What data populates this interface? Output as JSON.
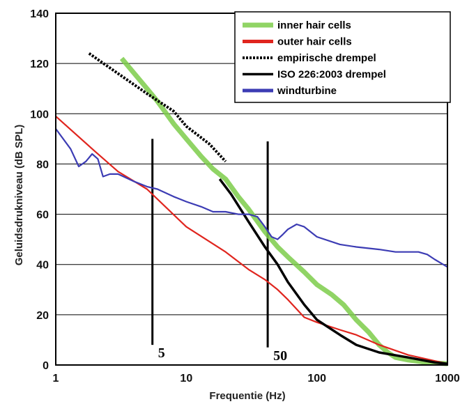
{
  "chart_data": {
    "type": "line",
    "xscale": "log",
    "xlim": [
      1,
      1000
    ],
    "ylim": [
      0,
      140
    ],
    "xlabel": "Frequentie (Hz)",
    "ylabel": "Geluidsdrukniveau  (dB SPL)",
    "grid": "horizontal",
    "legend_position": "top-right",
    "x_ticks": [
      "1",
      "10",
      "100",
      "1000"
    ],
    "y_ticks": [
      "0",
      "20",
      "40",
      "60",
      "80",
      "100",
      "120",
      "140"
    ],
    "series": [
      {
        "name": "inner hair cells",
        "color": "#7ccc4a",
        "style": "thick",
        "points": [
          [
            3.2,
            122
          ],
          [
            4,
            116
          ],
          [
            5,
            110
          ],
          [
            6,
            105
          ],
          [
            8,
            96
          ],
          [
            10,
            90
          ],
          [
            13,
            83
          ],
          [
            16,
            78
          ],
          [
            20,
            74
          ],
          [
            25,
            67
          ],
          [
            30,
            62
          ],
          [
            40,
            53
          ],
          [
            50,
            47
          ],
          [
            60,
            43
          ],
          [
            80,
            37
          ],
          [
            100,
            32
          ],
          [
            130,
            28
          ],
          [
            160,
            24
          ],
          [
            200,
            18
          ],
          [
            250,
            13
          ],
          [
            300,
            8
          ],
          [
            350,
            5
          ],
          [
            400,
            3
          ],
          [
            500,
            2
          ],
          [
            700,
            1
          ],
          [
            1000,
            0.5
          ]
        ]
      },
      {
        "name": "outer hair cells",
        "color": "#e0251e",
        "style": "solid",
        "points": [
          [
            1,
            99
          ],
          [
            2,
            85
          ],
          [
            3,
            77
          ],
          [
            5,
            70
          ],
          [
            10,
            55
          ],
          [
            20,
            45
          ],
          [
            30,
            38
          ],
          [
            40,
            34
          ],
          [
            50,
            30
          ],
          [
            60,
            26
          ],
          [
            80,
            19
          ],
          [
            100,
            17
          ],
          [
            150,
            14
          ],
          [
            200,
            12
          ],
          [
            300,
            8
          ],
          [
            500,
            4
          ],
          [
            1000,
            0.5
          ]
        ]
      },
      {
        "name": "empirische drempel",
        "color": "#000000",
        "style": "dotted",
        "points": [
          [
            1.8,
            124
          ],
          [
            3,
            116
          ],
          [
            5,
            108
          ],
          [
            8,
            101
          ],
          [
            10,
            95
          ],
          [
            15,
            88
          ],
          [
            20,
            81
          ]
        ]
      },
      {
        "name": "ISO 226:2003 drempel",
        "color": "#000000",
        "style": "solid-thick",
        "points": [
          [
            18,
            74
          ],
          [
            22,
            68
          ],
          [
            30,
            57
          ],
          [
            40,
            47
          ],
          [
            50,
            40
          ],
          [
            60,
            33
          ],
          [
            80,
            24
          ],
          [
            100,
            18
          ],
          [
            150,
            12
          ],
          [
            200,
            8
          ],
          [
            300,
            5
          ],
          [
            500,
            3
          ],
          [
            800,
            1
          ],
          [
            1000,
            0.5
          ]
        ]
      },
      {
        "name": "windturbine",
        "color": "#3c3cb4",
        "style": "solid",
        "points": [
          [
            1,
            94
          ],
          [
            1.3,
            86
          ],
          [
            1.5,
            79
          ],
          [
            1.7,
            81
          ],
          [
            1.9,
            84
          ],
          [
            2.1,
            82
          ],
          [
            2.3,
            75
          ],
          [
            2.6,
            76
          ],
          [
            3,
            76
          ],
          [
            4,
            73
          ],
          [
            5,
            71
          ],
          [
            6,
            70
          ],
          [
            8,
            67
          ],
          [
            10,
            65
          ],
          [
            13,
            63
          ],
          [
            16,
            61
          ],
          [
            20,
            61
          ],
          [
            25,
            60
          ],
          [
            30,
            60
          ],
          [
            35,
            59
          ],
          [
            40,
            55
          ],
          [
            45,
            51
          ],
          [
            50,
            50
          ],
          [
            55,
            52
          ],
          [
            60,
            54
          ],
          [
            70,
            56
          ],
          [
            80,
            55
          ],
          [
            100,
            51
          ],
          [
            150,
            48
          ],
          [
            200,
            47
          ],
          [
            300,
            46
          ],
          [
            400,
            45
          ],
          [
            500,
            45
          ],
          [
            600,
            45
          ],
          [
            700,
            44
          ],
          [
            800,
            42
          ],
          [
            1000,
            39
          ]
        ]
      }
    ],
    "markers": [
      {
        "label": "5",
        "x": 5.5,
        "y_from": 8,
        "y_to": 90
      },
      {
        "label": "50",
        "x": 42,
        "y_from": 7,
        "y_to": 89
      }
    ]
  }
}
